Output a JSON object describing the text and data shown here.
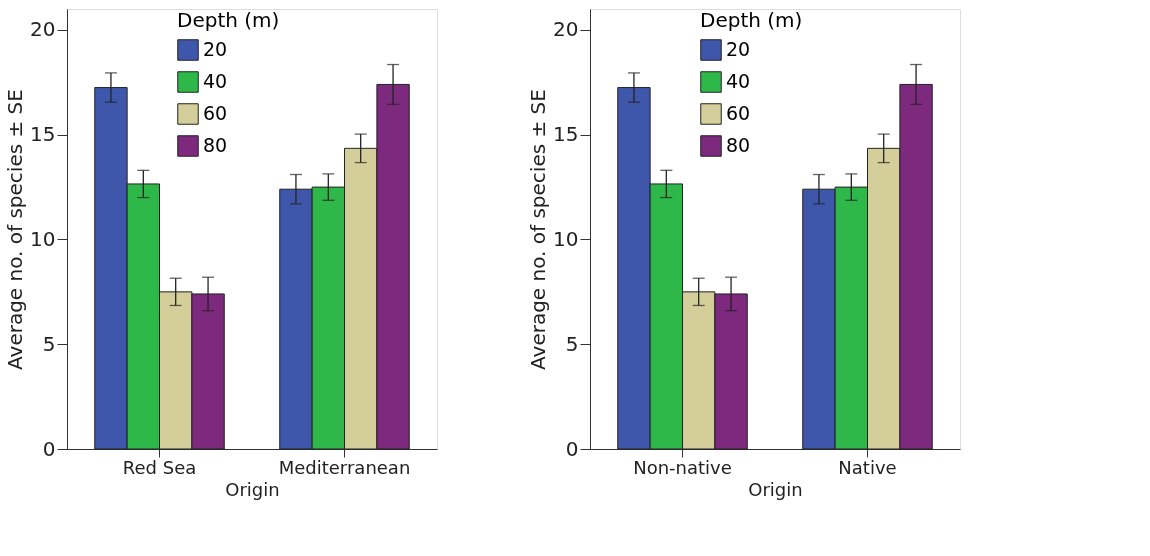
{
  "chart_data": [
    {
      "type": "bar",
      "categories": [
        "Red Sea",
        "Mediterranean"
      ],
      "xlabel": "Origin",
      "ylabel": "Average no. of species ± SE",
      "legend_title": "Depth (m)",
      "legend": "top",
      "ylim": [
        0,
        21
      ],
      "yticks": [
        0,
        5,
        10,
        15,
        20
      ],
      "series": [
        {
          "name": "20",
          "color": "#3f57ab",
          "values": [
            17.25,
            12.4
          ],
          "errors": [
            0.7,
            0.7
          ]
        },
        {
          "name": "40",
          "color": "#2fb84a",
          "values": [
            12.65,
            12.5
          ],
          "errors": [
            0.65,
            0.63
          ]
        },
        {
          "name": "60",
          "color": "#d4cf9a",
          "values": [
            7.5,
            14.35
          ],
          "errors": [
            0.65,
            0.68
          ]
        },
        {
          "name": "80",
          "color": "#7d297d",
          "values": [
            7.4,
            17.4
          ],
          "errors": [
            0.8,
            0.95
          ]
        }
      ]
    },
    {
      "type": "bar",
      "categories": [
        "Non-native",
        "Native"
      ],
      "xlabel": "Origin",
      "ylabel": "Average no. of species ± SE",
      "legend_title": "Depth (m)",
      "legend": "top",
      "ylim": [
        0,
        21
      ],
      "yticks": [
        0,
        5,
        10,
        15,
        20
      ],
      "series": [
        {
          "name": "20",
          "color": "#3f57ab",
          "values": [
            17.25,
            12.4
          ],
          "errors": [
            0.7,
            0.7
          ]
        },
        {
          "name": "40",
          "color": "#2fb84a",
          "values": [
            12.65,
            12.5
          ],
          "errors": [
            0.65,
            0.63
          ]
        },
        {
          "name": "60",
          "color": "#d4cf9a",
          "values": [
            7.5,
            14.35
          ],
          "errors": [
            0.65,
            0.68
          ]
        },
        {
          "name": "80",
          "color": "#7d297d",
          "values": [
            7.4,
            17.4
          ],
          "errors": [
            0.8,
            0.95
          ]
        }
      ]
    }
  ]
}
